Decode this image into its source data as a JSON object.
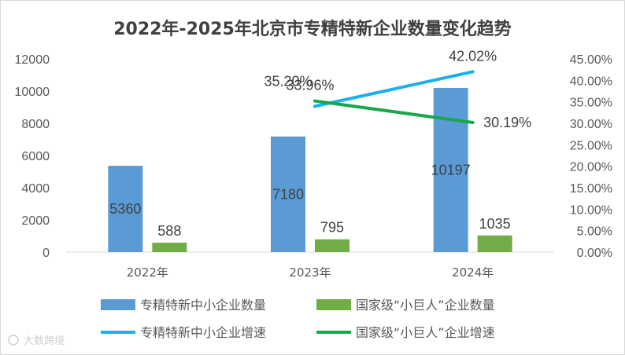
{
  "chart_data": {
    "type": "bar",
    "title": "2022年-2025年北京市专精特新企业数量变化趋势",
    "categories": [
      "2022年",
      "2023年",
      "2024年"
    ],
    "series": [
      {
        "name": "专精特新中小企业数量",
        "kind": "bar",
        "axis": "left",
        "color": "#5b9bd5",
        "values": [
          5360,
          7180,
          10197
        ],
        "labels": [
          "5360",
          "7180",
          "10197"
        ]
      },
      {
        "name": "国家级“小巨人”企业数量",
        "kind": "bar",
        "axis": "left",
        "color": "#70ad47",
        "values": [
          588,
          795,
          1035
        ],
        "labels": [
          "588",
          "795",
          "1035"
        ]
      },
      {
        "name": "专精特新中小企业增速",
        "kind": "line",
        "axis": "right",
        "color": "#1ab0e8",
        "values": [
          null,
          33.96,
          42.02
        ],
        "labels": [
          "",
          "33.96%",
          "42.02%"
        ]
      },
      {
        "name": "国家级“小巨人”企业增速",
        "kind": "line",
        "axis": "right",
        "color": "#18a84a",
        "values": [
          null,
          35.2,
          30.19
        ],
        "labels": [
          "",
          "35.20%",
          "30.19%"
        ]
      }
    ],
    "y_left": {
      "min": 0,
      "max": 12000,
      "step": 2000,
      "ticks": [
        "0",
        "2000",
        "4000",
        "6000",
        "8000",
        "10000",
        "12000"
      ]
    },
    "y_right": {
      "min": 0,
      "max": 45,
      "step": 5,
      "ticks": [
        "0.00%",
        "5.00%",
        "10.00%",
        "15.00%",
        "20.00%",
        "25.00%",
        "30.00%",
        "35.00%",
        "40.00%",
        "45.00%"
      ]
    },
    "legend": "bottom",
    "grid": false
  },
  "watermark": "大数跨境"
}
